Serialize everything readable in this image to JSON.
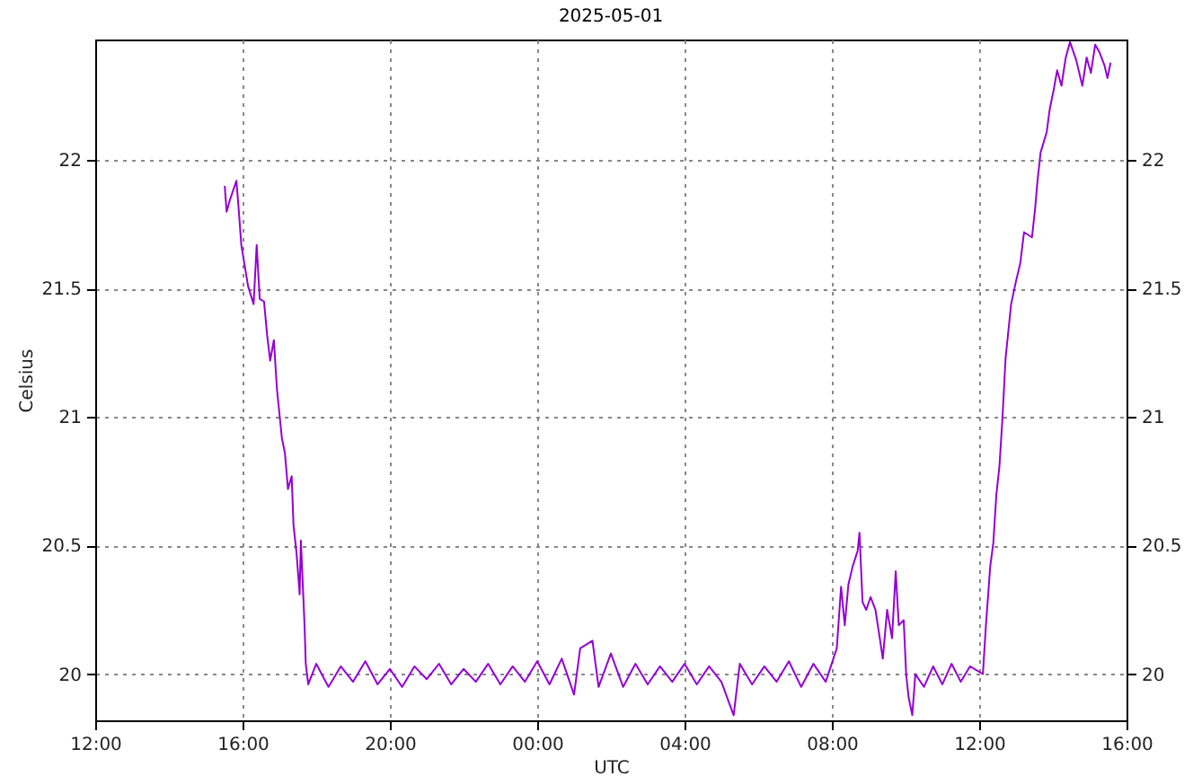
{
  "chart_data": {
    "type": "line",
    "title": "2025-05-01",
    "xlabel": "UTC",
    "ylabel": "Celsius",
    "x": [
      "2025-04-30T15:31",
      "2025-04-30T15:34",
      "2025-04-30T15:40",
      "2025-04-30T15:50",
      "2025-04-30T15:54",
      "2025-04-30T15:58",
      "2025-04-30T16:09",
      "2025-04-30T16:18",
      "2025-04-30T16:23",
      "2025-04-30T16:28",
      "2025-04-30T16:35",
      "2025-04-30T16:40",
      "2025-04-30T16:45",
      "2025-04-30T16:51",
      "2025-04-30T16:56",
      "2025-04-30T17:04",
      "2025-04-30T17:09",
      "2025-04-30T17:14",
      "2025-04-30T17:20",
      "2025-04-30T17:23",
      "2025-04-30T17:28",
      "2025-04-30T17:33",
      "2025-04-30T17:35",
      "2025-04-30T17:41",
      "2025-04-30T17:43",
      "2025-04-30T17:47",
      "2025-04-30T18:00",
      "2025-04-30T18:20",
      "2025-04-30T18:40",
      "2025-04-30T19:00",
      "2025-04-30T19:20",
      "2025-04-30T19:40",
      "2025-04-30T20:00",
      "2025-04-30T20:20",
      "2025-04-30T20:40",
      "2025-04-30T21:00",
      "2025-04-30T21:20",
      "2025-04-30T21:40",
      "2025-04-30T22:00",
      "2025-04-30T22:20",
      "2025-04-30T22:40",
      "2025-04-30T23:00",
      "2025-04-30T23:20",
      "2025-04-30T23:40",
      "2025-05-01T00:00",
      "2025-05-01T00:20",
      "2025-05-01T00:40",
      "2025-05-01T01:00",
      "2025-05-01T01:10",
      "2025-05-01T01:30",
      "2025-05-01T01:40",
      "2025-05-01T02:00",
      "2025-05-01T02:20",
      "2025-05-01T02:40",
      "2025-05-01T03:00",
      "2025-05-01T03:20",
      "2025-05-01T03:40",
      "2025-05-01T04:00",
      "2025-05-01T04:20",
      "2025-05-01T04:40",
      "2025-05-01T05:00",
      "2025-05-01T05:20",
      "2025-05-01T05:30",
      "2025-05-01T05:50",
      "2025-05-01T06:10",
      "2025-05-01T06:30",
      "2025-05-01T06:50",
      "2025-05-01T07:10",
      "2025-05-01T07:30",
      "2025-05-01T07:50",
      "2025-05-01T08:08",
      "2025-05-01T08:15",
      "2025-05-01T08:21",
      "2025-05-01T08:27",
      "2025-05-01T08:34",
      "2025-05-01T08:42",
      "2025-05-01T08:45",
      "2025-05-01T08:50",
      "2025-05-01T08:56",
      "2025-05-01T09:03",
      "2025-05-01T09:11",
      "2025-05-01T09:18",
      "2025-05-01T09:23",
      "2025-05-01T09:30",
      "2025-05-01T09:38",
      "2025-05-01T09:44",
      "2025-05-01T09:49",
      "2025-05-01T09:57",
      "2025-05-01T10:01",
      "2025-05-01T10:05",
      "2025-05-01T10:11",
      "2025-05-01T10:16",
      "2025-05-01T10:30",
      "2025-05-01T10:45",
      "2025-05-01T11:00",
      "2025-05-01T11:15",
      "2025-05-01T11:30",
      "2025-05-01T11:45",
      "2025-05-01T12:06",
      "2025-05-01T12:11",
      "2025-05-01T12:18",
      "2025-05-01T12:23",
      "2025-05-01T12:28",
      "2025-05-01T12:33",
      "2025-05-01T12:38",
      "2025-05-01T12:43",
      "2025-05-01T12:52",
      "2025-05-01T13:00",
      "2025-05-01T13:07",
      "2025-05-01T13:13",
      "2025-05-01T13:26",
      "2025-05-01T13:31",
      "2025-05-01T13:35",
      "2025-05-01T13:40",
      "2025-05-01T13:50",
      "2025-05-01T13:55",
      "2025-05-01T14:01",
      "2025-05-01T14:07",
      "2025-05-01T14:14",
      "2025-05-01T14:21",
      "2025-05-01T14:28",
      "2025-05-01T14:38",
      "2025-05-01T14:48",
      "2025-05-01T14:55",
      "2025-05-01T15:02",
      "2025-05-01T15:09",
      "2025-05-01T15:16",
      "2025-05-01T15:24",
      "2025-05-01T15:29",
      "2025-05-01T15:34"
    ],
    "series": [
      {
        "color": "#9400d3",
        "values": [
          21.9,
          21.8,
          21.85,
          21.92,
          21.8,
          21.67,
          21.51,
          21.44,
          21.67,
          21.46,
          21.45,
          21.32,
          21.22,
          21.3,
          21.11,
          20.92,
          20.86,
          20.72,
          20.77,
          20.58,
          20.47,
          20.31,
          20.52,
          20.19,
          20.04,
          19.96,
          20.04,
          19.95,
          20.03,
          19.97,
          20.05,
          19.96,
          20.02,
          19.95,
          20.03,
          19.98,
          20.04,
          19.96,
          20.02,
          19.97,
          20.04,
          19.96,
          20.03,
          19.97,
          20.05,
          19.96,
          20.06,
          19.92,
          20.1,
          20.13,
          19.95,
          20.08,
          19.95,
          20.04,
          19.96,
          20.03,
          19.97,
          20.04,
          19.96,
          20.03,
          19.97,
          19.84,
          20.04,
          19.96,
          20.03,
          19.97,
          20.05,
          19.95,
          20.04,
          19.97,
          20.1,
          20.34,
          20.19,
          20.35,
          20.42,
          20.48,
          20.55,
          20.28,
          20.25,
          20.3,
          20.25,
          20.14,
          20.06,
          20.25,
          20.14,
          20.4,
          20.19,
          20.21,
          20.0,
          19.91,
          19.84,
          20.0,
          19.95,
          20.03,
          19.96,
          20.04,
          19.97,
          20.03,
          20.0,
          20.19,
          20.42,
          20.51,
          20.7,
          20.81,
          21.0,
          21.23,
          21.44,
          21.53,
          21.6,
          21.72,
          21.7,
          21.81,
          21.92,
          22.03,
          22.11,
          22.2,
          22.27,
          22.35,
          22.29,
          22.4,
          22.46,
          22.39,
          22.29,
          22.4,
          22.34,
          22.45,
          22.42,
          22.37,
          22.32,
          22.38
        ]
      }
    ],
    "xlim": [
      "2025-04-30T12:00",
      "2025-05-01T16:00"
    ],
    "xticks": [
      {
        "value": "2025-04-30T12:00",
        "label": "12:00"
      },
      {
        "value": "2025-04-30T16:00",
        "label": "16:00"
      },
      {
        "value": "2025-04-30T20:00",
        "label": "20:00"
      },
      {
        "value": "2025-05-01T00:00",
        "label": "00:00"
      },
      {
        "value": "2025-05-01T04:00",
        "label": "04:00"
      },
      {
        "value": "2025-05-01T08:00",
        "label": "08:00"
      },
      {
        "value": "2025-05-01T12:00",
        "label": "12:00"
      },
      {
        "value": "2025-05-01T16:00",
        "label": "16:00"
      }
    ],
    "ylim": [
      19.82,
      22.47
    ],
    "yticks": [
      20,
      20.5,
      21,
      21.5,
      22
    ],
    "y2lim": [
      19.82,
      22.47
    ],
    "y2ticks": [
      20,
      20.5,
      21,
      21.5,
      22
    ],
    "grid": true,
    "line_style": "solid"
  }
}
